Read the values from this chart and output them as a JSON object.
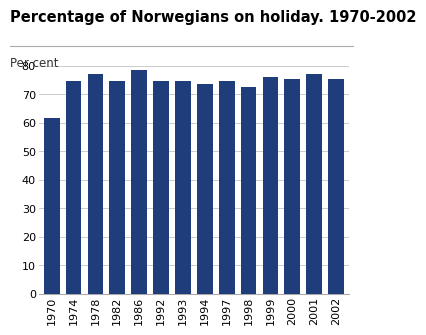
{
  "title": "Percentage of Norwegians on holiday. 1970-2002",
  "per_cent_label": "Per cent",
  "categories": [
    "1970",
    "1974",
    "1978",
    "1982",
    "1986",
    "1992",
    "1993",
    "1994",
    "1997",
    "1998",
    "1999",
    "2000",
    "2001",
    "2002"
  ],
  "values": [
    61.5,
    74.5,
    77.0,
    74.5,
    78.5,
    74.5,
    74.5,
    73.5,
    74.5,
    72.5,
    76.0,
    75.5,
    77.0,
    75.5
  ],
  "bar_color": "#1f3d7a",
  "ylim": [
    0,
    80
  ],
  "yticks": [
    0,
    10,
    20,
    30,
    40,
    50,
    60,
    70,
    80
  ],
  "grid_color": "#cccccc",
  "background_color": "#ffffff",
  "title_fontsize": 10.5,
  "label_fontsize": 8.5,
  "tick_fontsize": 8
}
